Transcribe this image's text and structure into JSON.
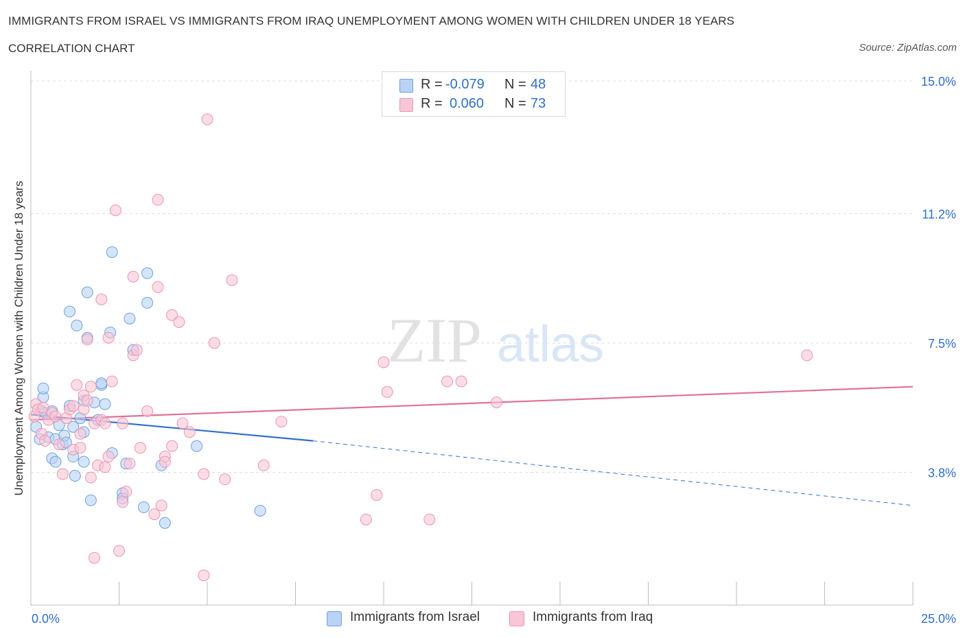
{
  "header": {
    "title": "IMMIGRANTS FROM ISRAEL VS IMMIGRANTS FROM IRAQ UNEMPLOYMENT AMONG WOMEN WITH CHILDREN UNDER 18 YEARS",
    "subtitle": "CORRELATION CHART",
    "source": "Source: ZipAtlas.com"
  },
  "watermark": {
    "zip": "ZIP",
    "atlas": "atlas"
  },
  "stats": {
    "israel": {
      "r_label": "R =",
      "r_value": "-0.079",
      "n_label": "N =",
      "n_value": "48"
    },
    "iraq": {
      "r_label": "R =",
      "r_value": "0.060",
      "n_label": "N =",
      "n_value": "73"
    }
  },
  "legend": {
    "israel": "Immigrants from Israel",
    "iraq": "Immigrants from Iraq"
  },
  "colors": {
    "israel_fill": "#b9d3f5",
    "israel_stroke": "#6d9fe0",
    "israel_line": "#2f6fd0",
    "iraq_fill": "#f8c6d6",
    "iraq_stroke": "#ec94b2",
    "iraq_line": "#e0709a",
    "tick_label": "#2f6fc8",
    "grid": "#dddddd"
  },
  "chart_data": {
    "type": "scatter",
    "title": "IMMIGRANTS FROM ISRAEL VS IMMIGRANTS FROM IRAQ UNEMPLOYMENT AMONG WOMEN WITH CHILDREN UNDER 18 YEARS",
    "xlabel": "",
    "ylabel": "Unemployment Among Women with Children Under 18 years",
    "xlim": [
      0,
      25
    ],
    "ylim": [
      0,
      15
    ],
    "x_tick_labels": [
      "0.0%",
      "25.0%"
    ],
    "y_ticks": [
      3.8,
      7.5,
      11.2,
      15.0
    ],
    "y_tick_labels": [
      "3.8%",
      "7.5%",
      "11.2%",
      "15.0%"
    ],
    "grid": true,
    "legend_position": "bottom",
    "series": [
      {
        "name": "Immigrants from Israel",
        "points": [
          [
            0.15,
            5.1
          ],
          [
            0.25,
            4.75
          ],
          [
            0.3,
            5.55
          ],
          [
            0.35,
            5.95
          ],
          [
            0.4,
            5.5
          ],
          [
            0.5,
            4.8
          ],
          [
            0.35,
            6.2
          ],
          [
            0.6,
            5.55
          ],
          [
            0.6,
            4.2
          ],
          [
            0.7,
            4.75
          ],
          [
            0.8,
            5.15
          ],
          [
            0.7,
            4.1
          ],
          [
            0.9,
            4.6
          ],
          [
            0.95,
            4.85
          ],
          [
            1.0,
            4.65
          ],
          [
            1.1,
            5.7
          ],
          [
            1.1,
            8.4
          ],
          [
            1.2,
            4.25
          ],
          [
            1.2,
            5.1
          ],
          [
            1.25,
            3.7
          ],
          [
            1.3,
            8.0
          ],
          [
            1.4,
            5.35
          ],
          [
            1.5,
            4.95
          ],
          [
            1.5,
            4.1
          ],
          [
            1.5,
            5.85
          ],
          [
            1.6,
            8.95
          ],
          [
            1.7,
            3.0
          ],
          [
            1.6,
            7.65
          ],
          [
            1.8,
            5.8
          ],
          [
            1.9,
            5.3
          ],
          [
            2.0,
            6.3
          ],
          [
            2.1,
            5.75
          ],
          [
            2.3,
            4.35
          ],
          [
            2.3,
            10.1
          ],
          [
            2.25,
            7.8
          ],
          [
            2.6,
            3.2
          ],
          [
            2.6,
            3.05
          ],
          [
            2.7,
            4.05
          ],
          [
            2.8,
            8.2
          ],
          [
            2.9,
            7.3
          ],
          [
            3.2,
            2.8
          ],
          [
            3.3,
            9.5
          ],
          [
            3.3,
            8.65
          ],
          [
            3.8,
            2.35
          ],
          [
            3.7,
            4.0
          ],
          [
            4.7,
            4.55
          ],
          [
            6.5,
            2.7
          ],
          [
            2.0,
            6.35
          ]
        ]
      },
      {
        "name": "Immigrants from Iraq",
        "points": [
          [
            0.1,
            5.4
          ],
          [
            0.15,
            5.75
          ],
          [
            0.2,
            5.6
          ],
          [
            0.3,
            4.9
          ],
          [
            0.35,
            5.65
          ],
          [
            0.4,
            4.7
          ],
          [
            0.5,
            5.3
          ],
          [
            0.6,
            5.5
          ],
          [
            0.7,
            5.4
          ],
          [
            0.8,
            4.6
          ],
          [
            0.9,
            3.75
          ],
          [
            1.0,
            5.35
          ],
          [
            1.1,
            5.6
          ],
          [
            1.2,
            4.45
          ],
          [
            1.2,
            5.7
          ],
          [
            1.3,
            6.3
          ],
          [
            1.4,
            4.9
          ],
          [
            1.4,
            4.5
          ],
          [
            1.5,
            5.6
          ],
          [
            1.5,
            6.0
          ],
          [
            1.6,
            5.85
          ],
          [
            1.6,
            7.6
          ],
          [
            1.7,
            6.25
          ],
          [
            1.7,
            3.65
          ],
          [
            1.8,
            5.2
          ],
          [
            1.8,
            1.35
          ],
          [
            1.9,
            4.0
          ],
          [
            2.0,
            5.3
          ],
          [
            2.0,
            8.75
          ],
          [
            2.1,
            5.2
          ],
          [
            2.1,
            3.95
          ],
          [
            2.2,
            7.65
          ],
          [
            2.2,
            4.25
          ],
          [
            2.3,
            6.4
          ],
          [
            2.4,
            11.3
          ],
          [
            2.5,
            1.55
          ],
          [
            2.6,
            5.2
          ],
          [
            2.6,
            2.95
          ],
          [
            2.7,
            3.25
          ],
          [
            2.8,
            4.05
          ],
          [
            2.9,
            9.4
          ],
          [
            2.9,
            7.15
          ],
          [
            3.0,
            7.3
          ],
          [
            3.1,
            4.5
          ],
          [
            3.3,
            5.55
          ],
          [
            3.5,
            2.6
          ],
          [
            3.6,
            9.1
          ],
          [
            3.6,
            11.6
          ],
          [
            3.7,
            2.85
          ],
          [
            3.8,
            4.25
          ],
          [
            3.8,
            4.1
          ],
          [
            4.0,
            8.3
          ],
          [
            4.0,
            4.55
          ],
          [
            4.2,
            8.1
          ],
          [
            4.3,
            5.2
          ],
          [
            4.5,
            4.95
          ],
          [
            4.9,
            3.75
          ],
          [
            4.9,
            0.85
          ],
          [
            5.0,
            13.9
          ],
          [
            5.2,
            7.5
          ],
          [
            5.5,
            3.6
          ],
          [
            5.7,
            9.3
          ],
          [
            6.6,
            4.0
          ],
          [
            7.1,
            5.25
          ],
          [
            9.5,
            2.45
          ],
          [
            9.8,
            3.15
          ],
          [
            10.0,
            6.95
          ],
          [
            10.1,
            6.1
          ],
          [
            11.3,
            2.45
          ],
          [
            11.8,
            6.4
          ],
          [
            12.2,
            6.4
          ],
          [
            13.2,
            5.8
          ],
          [
            22.0,
            7.15
          ]
        ]
      }
    ],
    "trend_lines": [
      {
        "name": "Immigrants from Israel",
        "solid": [
          [
            0,
            5.45
          ],
          [
            8.0,
            4.7
          ]
        ],
        "dashed": [
          [
            8.0,
            4.7
          ],
          [
            25,
            2.85
          ]
        ]
      },
      {
        "name": "Immigrants from Iraq",
        "solid": [
          [
            0,
            5.3
          ],
          [
            25,
            6.25
          ]
        ]
      }
    ]
  }
}
